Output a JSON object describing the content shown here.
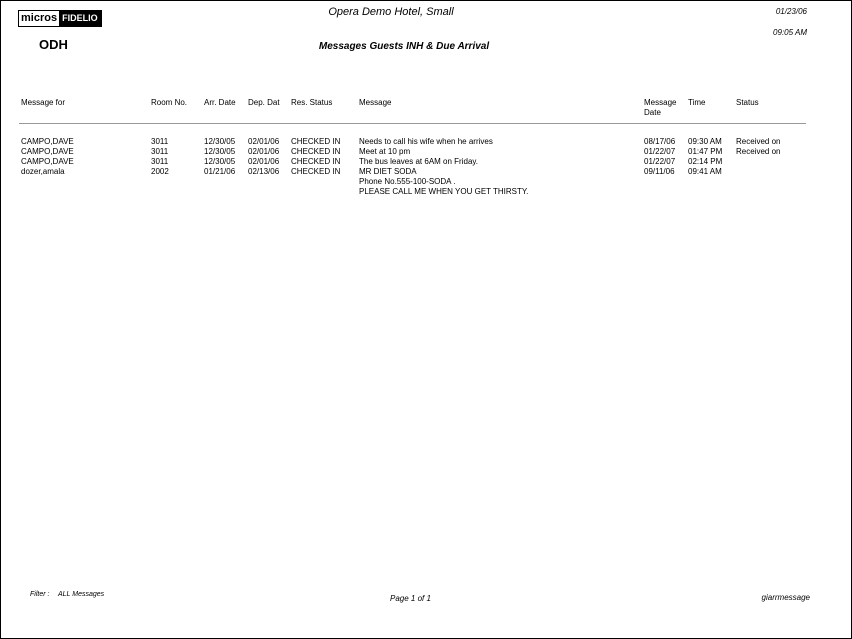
{
  "header": {
    "logo_left": "micros",
    "logo_right": "FIDELIO",
    "property_code": "ODH",
    "hotel_name": "Opera Demo Hotel, Small",
    "report_title": "Messages Guests INH & Due Arrival",
    "date": "01/23/06",
    "time": "09:05 AM"
  },
  "columns": [
    "Message for",
    "Room  No.",
    "Arr. Date",
    "Dep. Dat",
    "Res. Status",
    "Message",
    "Message\nDate",
    "Time",
    "Status"
  ],
  "column_labels": {
    "message_for": "Message for",
    "room": "Room  No.",
    "arr": "Arr. Date",
    "dep": "Dep. Dat",
    "res_status": "Res. Status",
    "message": "Message",
    "message_date_1": "Message",
    "message_date_2": "Date",
    "time": "Time",
    "status": "Status"
  },
  "rows": [
    {
      "name": "CAMPO,DAVE",
      "room": "3011",
      "arr": "12/30/05",
      "dep": "02/01/06",
      "res_status": "CHECKED IN",
      "message": [
        "Needs to call his wife when he arrives"
      ],
      "msg_date": "08/17/06",
      "time": "09:30 AM",
      "status": "Received on"
    },
    {
      "name": "CAMPO,DAVE",
      "room": "3011",
      "arr": "12/30/05",
      "dep": "02/01/06",
      "res_status": "CHECKED IN",
      "message": [
        "Meet at 10 pm"
      ],
      "msg_date": "01/22/07",
      "time": "01:47 PM",
      "status": "Received on"
    },
    {
      "name": "CAMPO,DAVE",
      "room": "3011",
      "arr": "12/30/05",
      "dep": "02/01/06",
      "res_status": "CHECKED IN",
      "message": [
        "The bus leaves at 6AM on Friday."
      ],
      "msg_date": "01/22/07",
      "time": "02:14 PM",
      "status": ""
    },
    {
      "name": "dozer,amala",
      "room": "2002",
      "arr": "01/21/06",
      "dep": "02/13/06",
      "res_status": "CHECKED IN",
      "message": [
        "MR DIET SODA",
        "Phone No.555-100-SODA .",
        "PLEASE CALL ME WHEN YOU GET THIRSTY."
      ],
      "msg_date": "09/11/06",
      "time": "09:41 AM",
      "status": ""
    }
  ],
  "footer": {
    "filter_label": "Filter :",
    "filter_value": "ALL Messages",
    "page": "Page 1  of 1",
    "report_name": "giarrmessage"
  }
}
